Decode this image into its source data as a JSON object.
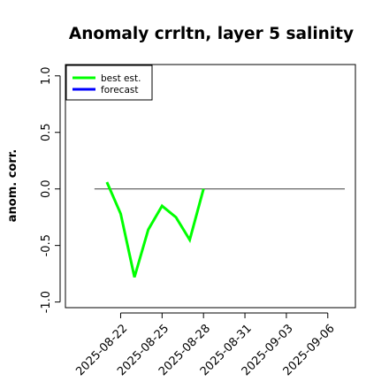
{
  "chart_data": {
    "type": "line",
    "title": "Anomaly crrltn, layer 5 salinity",
    "xlabel": "",
    "ylabel": "anom. corr.",
    "xlim": [
      "2025-08-18",
      "2025-09-08"
    ],
    "ylim": [
      -1.05,
      1.1
    ],
    "yticks": [
      -1.0,
      -0.5,
      0.0,
      0.5,
      1.0
    ],
    "ytick_labels": [
      "-1.0",
      "-0.5",
      "0.0",
      "0.5",
      "1.0"
    ],
    "xticks": [
      "2025-08-22",
      "2025-08-25",
      "2025-08-28",
      "2025-08-31",
      "2025-09-03",
      "2025-09-06"
    ],
    "highlight_tick": "2025-08-28",
    "highlight_color": "#228b22",
    "reference_line": 0.0,
    "grid": false,
    "legend_position": "top-left",
    "series": [
      {
        "name": "best est.",
        "color": "#00ff00",
        "x": [
          "2025-08-21",
          "2025-08-22",
          "2025-08-23",
          "2025-08-24",
          "2025-08-25",
          "2025-08-26",
          "2025-08-27",
          "2025-08-28"
        ],
        "y": [
          0.06,
          -0.22,
          -0.78,
          -0.36,
          -0.15,
          -0.25,
          -0.45,
          0.0
        ]
      },
      {
        "name": "forecast",
        "color": "#0000ff",
        "x": [],
        "y": []
      }
    ]
  }
}
